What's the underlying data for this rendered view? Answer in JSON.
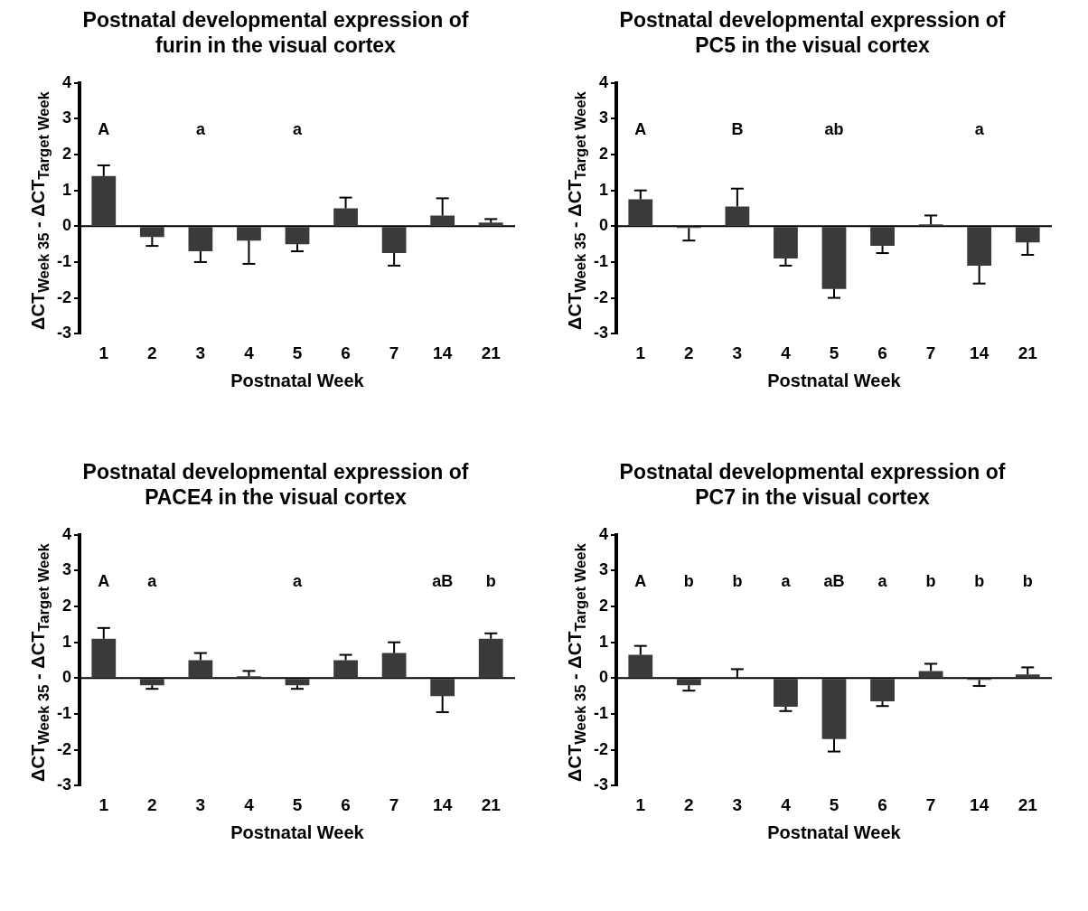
{
  "chart_data": [
    {
      "type": "bar",
      "title": "Postnatal developmental expression of furin in the visual cortex",
      "xlabel": "Postnatal Week",
      "ylabel": "ΔCT$_{Week 35}$ - ΔCT$_{Target Week}$",
      "categories": [
        "1",
        "2",
        "3",
        "4",
        "5",
        "6",
        "7",
        "14",
        "21"
      ],
      "color": "#3a3a3a",
      "values": [
        1.4,
        -0.3,
        -0.7,
        -0.4,
        -0.5,
        0.5,
        -0.75,
        0.3,
        0.1
      ],
      "errors": [
        [
          1.4,
          1.7
        ],
        [
          -0.55,
          -0.3
        ],
        [
          -1.0,
          -0.7
        ],
        [
          -1.05,
          -0.4
        ],
        [
          -0.7,
          -0.5
        ],
        [
          0.5,
          0.8
        ],
        [
          -1.1,
          -0.75
        ],
        [
          0.3,
          0.78
        ],
        [
          0.1,
          0.2
        ]
      ],
      "annotations": [
        "A",
        "a",
        "a"
      ],
      "ylim": [
        -3,
        4
      ],
      "yticks": [
        -3,
        -2,
        -1,
        0,
        1,
        2,
        3,
        4
      ]
    },
    {
      "type": "bar",
      "title": "Postnatal developmental expression of PC5 in the visual cortex",
      "xlabel": "Postnatal Week",
      "ylabel": "ΔCT$_{Week 35}$ - ΔCT$_{Target Week}$",
      "categories": [
        "1",
        "2",
        "3",
        "4",
        "5",
        "6",
        "7",
        "14",
        "21"
      ],
      "color": "#3a3a3a",
      "values": [
        0.75,
        -0.05,
        0.55,
        -0.9,
        -1.75,
        -0.55,
        0.05,
        -1.1,
        -0.45
      ],
      "errors": [
        [
          0.75,
          1.0
        ],
        [
          -0.4,
          -0.05
        ],
        [
          0.55,
          1.05
        ],
        [
          -1.1,
          -0.9
        ],
        [
          -2.0,
          -1.75
        ],
        [
          -0.75,
          -0.55
        ],
        [
          0.05,
          0.3
        ],
        [
          -1.6,
          -1.1
        ],
        [
          -0.8,
          -0.45
        ]
      ],
      "annotations": [
        "A",
        "B",
        "ab",
        "a"
      ],
      "ylim": [
        -3,
        4
      ],
      "yticks": [
        -3,
        -2,
        -1,
        0,
        1,
        2,
        3,
        4
      ]
    },
    {
      "type": "bar",
      "title": "Postnatal developmental expression of PACE4 in the visual cortex",
      "xlabel": "Postnatal Week",
      "ylabel": "ΔCT$_{Week 35}$ - ΔCT$_{Target Week}$",
      "categories": [
        "1",
        "2",
        "3",
        "4",
        "5",
        "6",
        "7",
        "14",
        "21"
      ],
      "color": "#3a3a3a",
      "values": [
        1.1,
        -0.2,
        0.5,
        0.05,
        -0.2,
        0.5,
        0.7,
        -0.5,
        1.1
      ],
      "errors": [
        [
          1.1,
          1.4
        ],
        [
          -0.3,
          -0.2
        ],
        [
          0.5,
          0.7
        ],
        [
          0.05,
          0.2
        ],
        [
          -0.3,
          -0.2
        ],
        [
          0.5,
          0.65
        ],
        [
          0.7,
          1.0
        ],
        [
          -0.95,
          -0.5
        ],
        [
          1.1,
          1.25
        ]
      ],
      "annotations": [
        "A",
        "a",
        "a",
        "aB",
        "b"
      ],
      "ylim": [
        -3,
        4
      ],
      "yticks": [
        -3,
        -2,
        -1,
        0,
        1,
        2,
        3,
        4
      ]
    },
    {
      "type": "bar",
      "title": "Postnatal developmental expression of PC7 in the visual cortex",
      "xlabel": "Postnatal Week",
      "ylabel": "ΔCT$_{Week 35}$ - ΔCT$_{Target Week}$",
      "categories": [
        "1",
        "2",
        "3",
        "4",
        "5",
        "6",
        "7",
        "14",
        "21"
      ],
      "color": "#3a3a3a",
      "values": [
        0.65,
        -0.2,
        0,
        -0.8,
        -1.7,
        -0.65,
        0.2,
        -0.05,
        0.1
      ],
      "errors": [
        [
          0.65,
          0.9
        ],
        [
          -0.35,
          -0.2
        ],
        [
          0,
          0.25
        ],
        [
          -0.92,
          -0.8
        ],
        [
          -2.05,
          -1.7
        ],
        [
          -0.78,
          -0.65
        ],
        [
          0.2,
          0.4
        ],
        [
          -0.22,
          -0.05
        ],
        [
          0.1,
          0.3
        ]
      ],
      "annotations": [
        "A",
        "b",
        "b",
        "a",
        "aB",
        "a",
        "b",
        "b",
        "b"
      ],
      "ylim": [
        -3,
        4
      ],
      "yticks": [
        -3,
        -2,
        -1,
        0,
        1,
        2,
        3,
        4
      ]
    }
  ]
}
